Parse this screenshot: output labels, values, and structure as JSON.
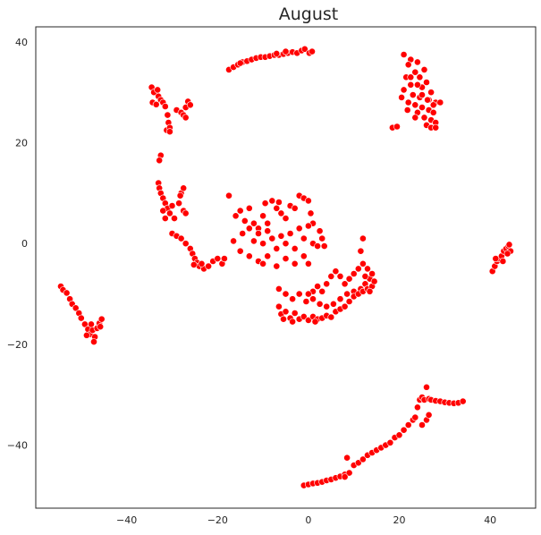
{
  "chart_data": {
    "type": "scatter",
    "title": "August",
    "xlabel": "",
    "ylabel": "",
    "xlim": [
      -60,
      50
    ],
    "ylim": [
      -52.5,
      43
    ],
    "x_ticks": [
      -40,
      -20,
      0,
      20,
      40
    ],
    "y_ticks": [
      -40,
      -20,
      0,
      20,
      40
    ],
    "x_tick_labels": [
      "−40",
      "−20",
      "0",
      "20",
      "40"
    ],
    "y_tick_labels": [
      "−40",
      "−20",
      "0",
      "20",
      "40"
    ],
    "grid": false,
    "legend": "none",
    "colors": {
      "point_fill": "#ff0000",
      "point_edge": "#ffffff",
      "axis": "#262626"
    },
    "clusters": [
      {
        "points": [
          [
            -54.5,
            -8.5
          ],
          [
            -54,
            -9.2
          ],
          [
            -53.2,
            -9.8
          ],
          [
            -52.5,
            -11
          ],
          [
            -52,
            -12
          ],
          [
            -51.2,
            -12.8
          ],
          [
            -50.5,
            -13.8
          ],
          [
            -50,
            -14.8
          ],
          [
            -49.2,
            -16
          ],
          [
            -48.5,
            -17
          ],
          [
            -48,
            -18
          ],
          [
            -47.5,
            -17.2
          ],
          [
            -47,
            -18.5
          ],
          [
            -47.2,
            -19.5
          ],
          [
            -46.5,
            -16.8
          ],
          [
            -46,
            -15.8
          ],
          [
            -45.5,
            -15
          ],
          [
            -45.8,
            -16.5
          ],
          [
            -47.8,
            -16
          ],
          [
            -48.8,
            -18.2
          ]
        ]
      },
      {
        "points": [
          [
            -34.5,
            31
          ],
          [
            -34,
            30
          ],
          [
            -33.2,
            30.5
          ],
          [
            -33,
            29.2
          ],
          [
            -32.5,
            28.5
          ],
          [
            -32,
            28
          ],
          [
            -34.3,
            28
          ],
          [
            -33.5,
            27.6
          ],
          [
            -31.5,
            27.2
          ],
          [
            -31,
            25.5
          ],
          [
            -30.8,
            24
          ],
          [
            -31.2,
            22.5
          ],
          [
            -30.5,
            23
          ],
          [
            -30.5,
            22.2
          ],
          [
            -29,
            26.5
          ],
          [
            -28,
            26
          ],
          [
            -27.5,
            25.5
          ],
          [
            -27,
            27
          ],
          [
            -26.5,
            28.2
          ],
          [
            -26,
            27.5
          ],
          [
            -27,
            25
          ]
        ]
      },
      {
        "points": [
          [
            -17.5,
            34.5
          ],
          [
            -16.5,
            35
          ],
          [
            -15.5,
            35.5
          ],
          [
            -14.5,
            36
          ],
          [
            -13.5,
            36.2
          ],
          [
            -12.5,
            36.5
          ],
          [
            -11.5,
            36.8
          ],
          [
            -10.5,
            37
          ],
          [
            -9.5,
            37
          ],
          [
            -8.5,
            37.2
          ],
          [
            -7.5,
            37.4
          ],
          [
            -6.5,
            37.4
          ],
          [
            -5.5,
            37.6
          ],
          [
            -4.5,
            37.8
          ],
          [
            -3.5,
            38
          ],
          [
            -2.5,
            37.8
          ],
          [
            -1.5,
            38.3
          ],
          [
            -0.8,
            38.6
          ],
          [
            0.2,
            37.8
          ],
          [
            0.8,
            38.1
          ],
          [
            -5,
            38.1
          ],
          [
            -7,
            37.7
          ],
          [
            -15,
            35.8
          ]
        ]
      },
      {
        "points": [
          [
            21,
            37.5
          ],
          [
            22.5,
            36.5
          ],
          [
            24,
            36
          ],
          [
            25.5,
            34.5
          ],
          [
            22,
            35.5
          ],
          [
            23.5,
            34
          ],
          [
            21.5,
            33
          ],
          [
            24.5,
            33
          ],
          [
            26,
            32
          ],
          [
            22.5,
            31.5
          ],
          [
            25,
            31
          ],
          [
            27,
            30
          ],
          [
            21,
            30.5
          ],
          [
            23,
            29.5
          ],
          [
            24.5,
            29
          ],
          [
            26.5,
            28.5
          ],
          [
            28,
            28
          ],
          [
            29,
            28
          ],
          [
            22,
            28
          ],
          [
            23.5,
            27.5
          ],
          [
            25,
            27
          ],
          [
            26.5,
            26.5
          ],
          [
            27.5,
            26
          ],
          [
            24,
            26
          ],
          [
            25.5,
            25
          ],
          [
            27,
            24.5
          ],
          [
            28,
            24
          ],
          [
            26,
            23.5
          ],
          [
            27,
            23
          ],
          [
            28,
            23
          ],
          [
            18.5,
            23
          ],
          [
            19.5,
            23.2
          ],
          [
            20.5,
            29
          ],
          [
            21.8,
            26.5
          ],
          [
            23.5,
            25
          ],
          [
            26.2,
            28.5
          ],
          [
            27.5,
            27.5
          ],
          [
            22.5,
            33
          ],
          [
            24,
            31.5
          ],
          [
            25,
            29.5
          ]
        ]
      },
      {
        "points": [
          [
            -32.5,
            17.5
          ],
          [
            -32.8,
            16.5
          ],
          [
            -33,
            12
          ],
          [
            -32.8,
            11
          ],
          [
            -32.5,
            10
          ],
          [
            -32,
            9
          ],
          [
            -31.5,
            8
          ],
          [
            -31,
            7
          ],
          [
            -32,
            6.5
          ],
          [
            -30.5,
            6
          ],
          [
            -29.5,
            5
          ],
          [
            -31.5,
            5
          ],
          [
            -30,
            7.5
          ],
          [
            -28.5,
            8
          ],
          [
            -28,
            10
          ],
          [
            -27.5,
            11
          ],
          [
            -28.2,
            9.5
          ],
          [
            -27.5,
            6.5
          ],
          [
            -27,
            6
          ],
          [
            -30,
            2
          ],
          [
            -29,
            1.5
          ],
          [
            -28,
            1
          ],
          [
            -27,
            0
          ],
          [
            -26,
            -1
          ],
          [
            -25.5,
            -2
          ],
          [
            -25,
            -3
          ],
          [
            -24.5,
            -3.8
          ],
          [
            -24,
            -4.5
          ],
          [
            -23,
            -5
          ],
          [
            -22,
            -4.5
          ],
          [
            -21,
            -3.5
          ],
          [
            -20,
            -3
          ],
          [
            -19,
            -4
          ],
          [
            -18.5,
            -3
          ],
          [
            -23.5,
            -4
          ],
          [
            -25.2,
            -4.2
          ]
        ]
      },
      {
        "points": [
          [
            -17.5,
            9.5
          ],
          [
            -16,
            5.5
          ],
          [
            -15,
            6.5
          ],
          [
            -14,
            4.5
          ],
          [
            -13,
            7
          ],
          [
            -12,
            4
          ],
          [
            -11,
            3
          ],
          [
            -10,
            5.5
          ],
          [
            -9,
            4
          ],
          [
            -8,
            8.5
          ],
          [
            -7,
            7
          ],
          [
            -6,
            6
          ],
          [
            -5,
            5
          ],
          [
            -4,
            7.5
          ],
          [
            -3,
            7
          ],
          [
            -2,
            9.5
          ],
          [
            -1,
            9
          ],
          [
            0,
            8.5
          ],
          [
            0.5,
            6
          ],
          [
            1,
            4
          ],
          [
            -14.5,
            2
          ],
          [
            -13,
            3
          ],
          [
            -12,
            0.5
          ],
          [
            -11,
            2
          ],
          [
            -10,
            0
          ],
          [
            -9,
            2.5
          ],
          [
            -8,
            1
          ],
          [
            -7,
            -1
          ],
          [
            -6,
            1.5
          ],
          [
            -5,
            0
          ],
          [
            -4,
            2
          ],
          [
            -3,
            -1
          ],
          [
            -2,
            3
          ],
          [
            -1,
            1
          ],
          [
            0,
            3.5
          ],
          [
            1,
            0
          ],
          [
            2,
            -0.5
          ],
          [
            3,
            1
          ],
          [
            2.5,
            2.5
          ],
          [
            3.5,
            -0.5
          ],
          [
            -15,
            -1.5
          ],
          [
            -13,
            -2.5
          ],
          [
            -11,
            -3.5
          ],
          [
            -9,
            -2.5
          ],
          [
            -7,
            -4.5
          ],
          [
            -5,
            -3
          ],
          [
            -3,
            -4
          ],
          [
            -1,
            -2.5
          ],
          [
            0,
            -4
          ],
          [
            -10,
            -4
          ],
          [
            -16.5,
            0.5
          ],
          [
            -9.5,
            8
          ],
          [
            -6.5,
            8.2
          ]
        ]
      },
      {
        "points": [
          [
            -6.5,
            -9
          ],
          [
            -5,
            -10
          ],
          [
            -3.5,
            -11
          ],
          [
            -2,
            -10
          ],
          [
            -0.5,
            -11.5
          ],
          [
            1,
            -11
          ],
          [
            2.5,
            -12
          ],
          [
            4,
            -12.5
          ],
          [
            5.5,
            -12
          ],
          [
            7,
            -11
          ],
          [
            8.5,
            -10
          ],
          [
            10,
            -9.5
          ],
          [
            11.5,
            -9
          ],
          [
            12.5,
            -8
          ],
          [
            13.5,
            -7
          ],
          [
            14,
            -6
          ],
          [
            13,
            -5
          ],
          [
            12,
            -4
          ],
          [
            11,
            -5
          ],
          [
            10,
            -6
          ],
          [
            9,
            -7
          ],
          [
            8,
            -8
          ],
          [
            7,
            -6.5
          ],
          [
            6,
            -5.5
          ],
          [
            5,
            -6.5
          ],
          [
            4,
            -8
          ],
          [
            3,
            -9.5
          ],
          [
            2,
            -8.5
          ],
          [
            1,
            -9.5
          ],
          [
            0,
            -10
          ],
          [
            12,
            1
          ],
          [
            11.5,
            -1.5
          ],
          [
            -6.5,
            -12.5
          ],
          [
            -6,
            -14
          ],
          [
            -5,
            -13.5
          ],
          [
            -4,
            -14.8
          ],
          [
            -3,
            -13.8
          ],
          [
            -2,
            -15
          ],
          [
            -1,
            -14.5
          ],
          [
            0,
            -15.2
          ],
          [
            1,
            -14.5
          ],
          [
            2,
            -15
          ],
          [
            3,
            -14.8
          ],
          [
            4,
            -14.3
          ],
          [
            5,
            -14.6
          ],
          [
            6,
            -13.5
          ],
          [
            7,
            -13
          ],
          [
            8,
            -12.5
          ],
          [
            9,
            -11.5
          ],
          [
            10,
            -10.5
          ],
          [
            11,
            -10
          ],
          [
            12,
            -9.5
          ],
          [
            13,
            -9
          ],
          [
            14,
            -8.5
          ],
          [
            14.5,
            -7.5
          ],
          [
            -5.5,
            -15
          ],
          [
            -3.5,
            -15.5
          ],
          [
            1.5,
            -15.5
          ],
          [
            12.5,
            -6.5
          ],
          [
            13.5,
            -9.5
          ]
        ]
      },
      {
        "points": [
          [
            40.5,
            -5.5
          ],
          [
            41,
            -4.5
          ],
          [
            41.5,
            -3.5
          ],
          [
            42,
            -3
          ],
          [
            42.5,
            -2.5
          ],
          [
            43,
            -1.5
          ],
          [
            43.5,
            -1
          ],
          [
            44,
            -0.5
          ],
          [
            44.5,
            -1.5
          ],
          [
            44.2,
            -0.2
          ],
          [
            43.8,
            -2
          ],
          [
            41.2,
            -3
          ],
          [
            42.8,
            -3.5
          ]
        ]
      },
      {
        "points": [
          [
            -1,
            -48
          ],
          [
            0,
            -47.8
          ],
          [
            1,
            -47.6
          ],
          [
            2,
            -47.5
          ],
          [
            3,
            -47.3
          ],
          [
            4,
            -47
          ],
          [
            5,
            -46.8
          ],
          [
            6,
            -46.5
          ],
          [
            7,
            -46.2
          ],
          [
            8,
            -45.8
          ],
          [
            9,
            -45.5
          ],
          [
            8.5,
            -42.5
          ],
          [
            8,
            -46.3
          ],
          [
            10,
            -44
          ],
          [
            11,
            -43.5
          ],
          [
            12,
            -42.8
          ],
          [
            13,
            -42
          ],
          [
            14,
            -41.5
          ],
          [
            15,
            -41
          ],
          [
            16,
            -40.5
          ],
          [
            17,
            -40
          ],
          [
            18,
            -39.5
          ],
          [
            19,
            -38.5
          ],
          [
            20,
            -38
          ],
          [
            21,
            -37
          ],
          [
            22,
            -36
          ],
          [
            23,
            -35
          ],
          [
            23.5,
            -34.5
          ],
          [
            24,
            -32.5
          ],
          [
            24.5,
            -31
          ],
          [
            25,
            -30.5
          ],
          [
            25.5,
            -31
          ],
          [
            26,
            -28.5
          ],
          [
            26.5,
            -30.8
          ],
          [
            27,
            -31
          ],
          [
            28,
            -31.2
          ],
          [
            29,
            -31.3
          ],
          [
            30,
            -31.5
          ],
          [
            31,
            -31.6
          ],
          [
            32,
            -31.7
          ],
          [
            33,
            -31.6
          ],
          [
            34,
            -31.3
          ],
          [
            25,
            -36
          ],
          [
            26,
            -35
          ],
          [
            26.5,
            -34
          ]
        ]
      }
    ]
  }
}
